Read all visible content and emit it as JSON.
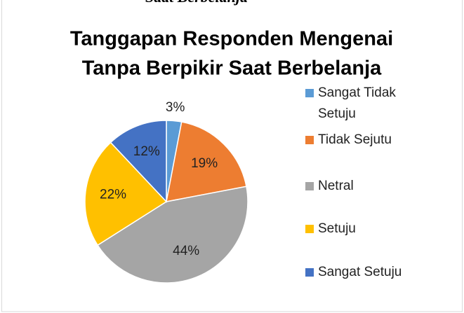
{
  "chart_data": {
    "type": "pie",
    "caption": "Saat Berbelanja",
    "title": [
      "Tanggapan Responden Mengenai",
      "Tanpa Berpikir Saat Berbelanja"
    ],
    "categories": [
      "Sangat Tidak Setuju",
      "Tidak Sejutu",
      "Netral",
      "Setuju",
      "Sangat Setuju"
    ],
    "values": [
      3,
      19,
      44,
      22,
      12
    ],
    "value_labels": [
      "3%",
      "19%",
      "44%",
      "22%",
      "12%"
    ],
    "colors": [
      "#5b9bd5",
      "#ed7d31",
      "#a5a5a5",
      "#ffc000",
      "#4472c4"
    ],
    "legend": "right"
  }
}
